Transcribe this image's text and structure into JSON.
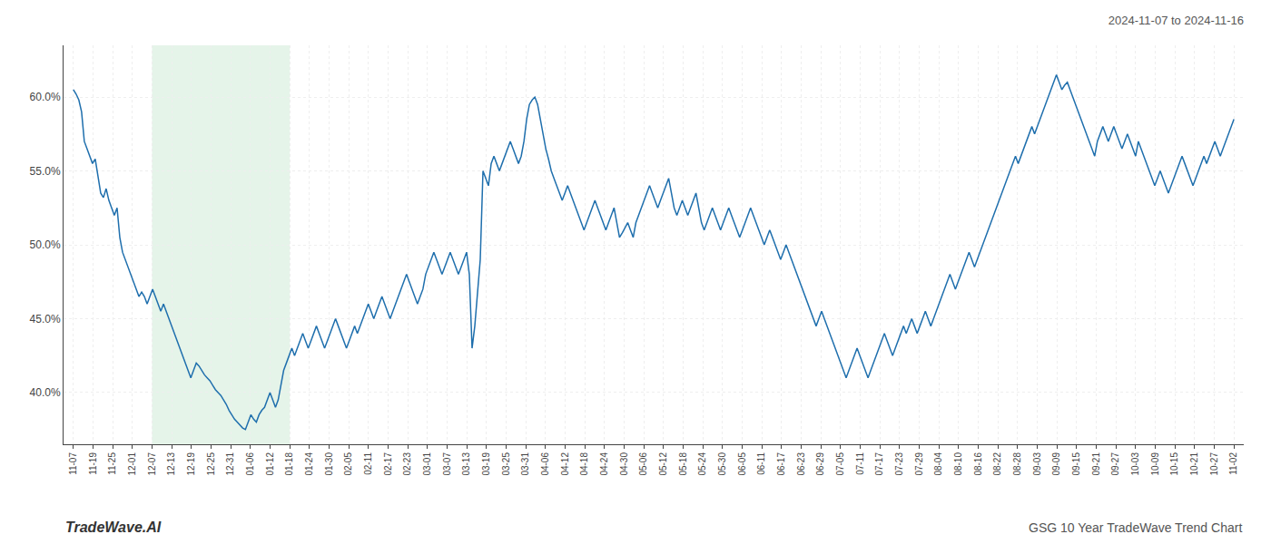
{
  "chart_data": {
    "type": "line",
    "title": "2024-11-07 to 2024-11-16",
    "annotations": [
      "TradeWave.AI",
      "GSG 10 Year TradeWave Trend Chart"
    ],
    "color": "#1f6fad",
    "grid": true,
    "highlight": {
      "start": 4,
      "end": 11,
      "color": "#d4edda"
    },
    "xlim": [
      -0.5,
      59.5
    ],
    "xticks": [
      {
        "value": 0,
        "label": "11-07"
      },
      {
        "value": 1,
        "label": "11-19"
      },
      {
        "value": 2,
        "label": "11-25"
      },
      {
        "value": 3,
        "label": "12-01"
      },
      {
        "value": 4,
        "label": "12-07"
      },
      {
        "value": 5,
        "label": "12-13"
      },
      {
        "value": 6,
        "label": "12-19"
      },
      {
        "value": 7,
        "label": "12-25"
      },
      {
        "value": 8,
        "label": "12-31"
      },
      {
        "value": 9,
        "label": "01-06"
      },
      {
        "value": 10,
        "label": "01-12"
      },
      {
        "value": 11,
        "label": "01-18"
      },
      {
        "value": 12,
        "label": "01-24"
      },
      {
        "value": 13,
        "label": "01-30"
      },
      {
        "value": 14,
        "label": "02-05"
      },
      {
        "value": 15,
        "label": "02-11"
      },
      {
        "value": 16,
        "label": "02-17"
      },
      {
        "value": 17,
        "label": "02-23"
      },
      {
        "value": 18,
        "label": "03-01"
      },
      {
        "value": 19,
        "label": "03-07"
      },
      {
        "value": 20,
        "label": "03-13"
      },
      {
        "value": 21,
        "label": "03-19"
      },
      {
        "value": 22,
        "label": "03-25"
      },
      {
        "value": 23,
        "label": "03-31"
      },
      {
        "value": 24,
        "label": "04-06"
      },
      {
        "value": 25,
        "label": "04-12"
      },
      {
        "value": 26,
        "label": "04-18"
      },
      {
        "value": 27,
        "label": "04-24"
      },
      {
        "value": 28,
        "label": "04-30"
      },
      {
        "value": 29,
        "label": "05-06"
      },
      {
        "value": 30,
        "label": "05-12"
      },
      {
        "value": 31,
        "label": "05-18"
      },
      {
        "value": 32,
        "label": "05-24"
      },
      {
        "value": 33,
        "label": "05-30"
      },
      {
        "value": 34,
        "label": "06-05"
      },
      {
        "value": 35,
        "label": "06-11"
      },
      {
        "value": 36,
        "label": "06-17"
      },
      {
        "value": 37,
        "label": "06-23"
      },
      {
        "value": 38,
        "label": "06-29"
      },
      {
        "value": 39,
        "label": "07-05"
      },
      {
        "value": 40,
        "label": "07-11"
      },
      {
        "value": 41,
        "label": "07-17"
      },
      {
        "value": 42,
        "label": "07-23"
      },
      {
        "value": 43,
        "label": "07-29"
      },
      {
        "value": 44,
        "label": "08-04"
      },
      {
        "value": 45,
        "label": "08-10"
      },
      {
        "value": 46,
        "label": "08-16"
      },
      {
        "value": 47,
        "label": "08-22"
      },
      {
        "value": 48,
        "label": "08-28"
      },
      {
        "value": 49,
        "label": "09-03"
      },
      {
        "value": 50,
        "label": "09-09"
      },
      {
        "value": 51,
        "label": "09-15"
      },
      {
        "value": 52,
        "label": "09-21"
      },
      {
        "value": 53,
        "label": "09-27"
      },
      {
        "value": 54,
        "label": "10-03"
      },
      {
        "value": 55,
        "label": "10-09"
      },
      {
        "value": 56,
        "label": "10-15"
      },
      {
        "value": 57,
        "label": "10-21"
      },
      {
        "value": 58,
        "label": "10-27"
      },
      {
        "value": 59,
        "label": "11-02"
      }
    ],
    "ylim": [
      36.5,
      63.5
    ],
    "yticks": [
      {
        "value": 40.0,
        "label": "40.0%"
      },
      {
        "value": 45.0,
        "label": "45.0%"
      },
      {
        "value": 50.0,
        "label": "50.0%"
      },
      {
        "value": 55.0,
        "label": "55.0%"
      },
      {
        "value": 60.0,
        "label": "60.0%"
      }
    ],
    "values": [
      60.5,
      60.2,
      59.8,
      59.0,
      57.0,
      56.5,
      56.0,
      55.5,
      55.8,
      54.5,
      53.5,
      53.2,
      53.8,
      53.0,
      52.5,
      52.0,
      52.5,
      50.5,
      49.5,
      49.0,
      48.5,
      48.0,
      47.5,
      47.0,
      46.5,
      46.8,
      46.5,
      46.0,
      46.5,
      47.0,
      46.5,
      46.0,
      45.5,
      46.0,
      45.5,
      45.0,
      44.5,
      44.0,
      43.5,
      43.0,
      42.5,
      42.0,
      41.5,
      41.0,
      41.5,
      42.0,
      41.8,
      41.5,
      41.2,
      41.0,
      40.8,
      40.5,
      40.2,
      40.0,
      39.8,
      39.5,
      39.2,
      38.8,
      38.5,
      38.2,
      38.0,
      37.8,
      37.6,
      37.5,
      38.0,
      38.5,
      38.2,
      38.0,
      38.5,
      38.8,
      39.0,
      39.5,
      40.0,
      39.5,
      39.0,
      39.5,
      40.5,
      41.5,
      42.0,
      42.5,
      43.0,
      42.5,
      43.0,
      43.5,
      44.0,
      43.5,
      43.0,
      43.5,
      44.0,
      44.5,
      44.0,
      43.5,
      43.0,
      43.5,
      44.0,
      44.5,
      45.0,
      44.5,
      44.0,
      43.5,
      43.0,
      43.5,
      44.0,
      44.5,
      44.0,
      44.5,
      45.0,
      45.5,
      46.0,
      45.5,
      45.0,
      45.5,
      46.0,
      46.5,
      46.0,
      45.5,
      45.0,
      45.5,
      46.0,
      46.5,
      47.0,
      47.5,
      48.0,
      47.5,
      47.0,
      46.5,
      46.0,
      46.5,
      47.0,
      48.0,
      48.5,
      49.0,
      49.5,
      49.0,
      48.5,
      48.0,
      48.5,
      49.0,
      49.5,
      49.0,
      48.5,
      48.0,
      48.5,
      49.0,
      49.5,
      48.0,
      43.0,
      44.5,
      47.0,
      49.0,
      55.0,
      54.5,
      54.0,
      55.5,
      56.0,
      55.5,
      55.0,
      55.5,
      56.0,
      56.5,
      57.0,
      56.5,
      56.0,
      55.5,
      56.0,
      57.0,
      58.5,
      59.5,
      59.8,
      60.0,
      59.5,
      58.5,
      57.5,
      56.5,
      55.8,
      55.0,
      54.5,
      54.0,
      53.5,
      53.0,
      53.5,
      54.0,
      53.5,
      53.0,
      52.5,
      52.0,
      51.5,
      51.0,
      51.5,
      52.0,
      52.5,
      53.0,
      52.5,
      52.0,
      51.5,
      51.0,
      51.5,
      52.0,
      52.5,
      51.5,
      50.5,
      50.8,
      51.2,
      51.5,
      51.0,
      50.5,
      51.5,
      52.0,
      52.5,
      53.0,
      53.5,
      54.0,
      53.5,
      53.0,
      52.5,
      53.0,
      53.5,
      54.0,
      54.5,
      53.5,
      52.5,
      52.0,
      52.5,
      53.0,
      52.5,
      52.0,
      52.5,
      53.0,
      53.5,
      52.5,
      51.5,
      51.0,
      51.5,
      52.0,
      52.5,
      52.0,
      51.5,
      51.0,
      51.5,
      52.0,
      52.5,
      52.0,
      51.5,
      51.0,
      50.5,
      51.0,
      51.5,
      52.0,
      52.5,
      52.0,
      51.5,
      51.0,
      50.5,
      50.0,
      50.5,
      51.0,
      50.5,
      50.0,
      49.5,
      49.0,
      49.5,
      50.0,
      49.5,
      49.0,
      48.5,
      48.0,
      47.5,
      47.0,
      46.5,
      46.0,
      45.5,
      45.0,
      44.5,
      45.0,
      45.5,
      45.0,
      44.5,
      44.0,
      43.5,
      43.0,
      42.5,
      42.0,
      41.5,
      41.0,
      41.5,
      42.0,
      42.5,
      43.0,
      42.5,
      42.0,
      41.5,
      41.0,
      41.5,
      42.0,
      42.5,
      43.0,
      43.5,
      44.0,
      43.5,
      43.0,
      42.5,
      43.0,
      43.5,
      44.0,
      44.5,
      44.0,
      44.5,
      45.0,
      44.5,
      44.0,
      44.5,
      45.0,
      45.5,
      45.0,
      44.5,
      45.0,
      45.5,
      46.0,
      46.5,
      47.0,
      47.5,
      48.0,
      47.5,
      47.0,
      47.5,
      48.0,
      48.5,
      49.0,
      49.5,
      49.0,
      48.5,
      49.0,
      49.5,
      50.0,
      50.5,
      51.0,
      51.5,
      52.0,
      52.5,
      53.0,
      53.5,
      54.0,
      54.5,
      55.0,
      55.5,
      56.0,
      55.5,
      56.0,
      56.5,
      57.0,
      57.5,
      58.0,
      57.5,
      58.0,
      58.5,
      59.0,
      59.5,
      60.0,
      60.5,
      61.0,
      61.5,
      61.0,
      60.5,
      60.8,
      61.0,
      60.5,
      60.0,
      59.5,
      59.0,
      58.5,
      58.0,
      57.5,
      57.0,
      56.5,
      56.0,
      57.0,
      57.5,
      58.0,
      57.5,
      57.0,
      57.5,
      58.0,
      57.5,
      57.0,
      56.5,
      57.0,
      57.5,
      57.0,
      56.5,
      56.0,
      57.0,
      56.5,
      56.0,
      55.5,
      55.0,
      54.5,
      54.0,
      54.5,
      55.0,
      54.5,
      54.0,
      53.5,
      54.0,
      54.5,
      55.0,
      55.5,
      56.0,
      55.5,
      55.0,
      54.5,
      54.0,
      54.5,
      55.0,
      55.5,
      56.0,
      55.5,
      56.0,
      56.5,
      57.0,
      56.5,
      56.0,
      56.5,
      57.0,
      57.5,
      58.0,
      58.5
    ]
  }
}
